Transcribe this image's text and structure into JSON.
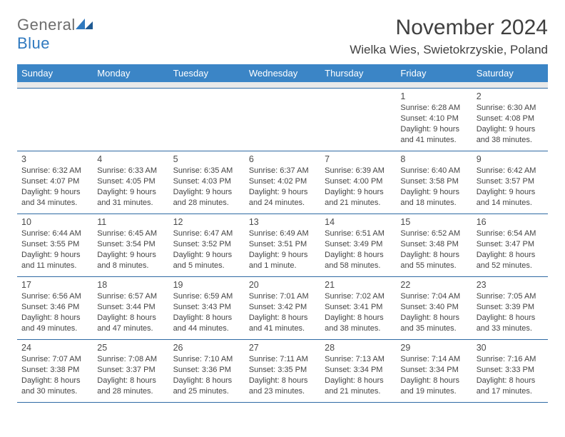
{
  "brand": {
    "part1": "General",
    "part2": "Blue"
  },
  "title": "November 2024",
  "location": "Wielka Wies, Swietokrzyskie, Poland",
  "colors": {
    "header_bg": "#3b85c6",
    "header_text": "#ffffff",
    "cell_border": "#2f6aa4",
    "spacer_bg": "#e9e9e9",
    "brand_gray": "#6d6d6d",
    "brand_blue": "#2f79bf"
  },
  "weekdays": [
    "Sunday",
    "Monday",
    "Tuesday",
    "Wednesday",
    "Thursday",
    "Friday",
    "Saturday"
  ],
  "grid": [
    [
      null,
      null,
      null,
      null,
      null,
      {
        "n": "1",
        "sr": "6:28 AM",
        "ss": "4:10 PM",
        "dh": "9",
        "dm": "41"
      },
      {
        "n": "2",
        "sr": "6:30 AM",
        "ss": "4:08 PM",
        "dh": "9",
        "dm": "38"
      }
    ],
    [
      {
        "n": "3",
        "sr": "6:32 AM",
        "ss": "4:07 PM",
        "dh": "9",
        "dm": "34"
      },
      {
        "n": "4",
        "sr": "6:33 AM",
        "ss": "4:05 PM",
        "dh": "9",
        "dm": "31"
      },
      {
        "n": "5",
        "sr": "6:35 AM",
        "ss": "4:03 PM",
        "dh": "9",
        "dm": "28"
      },
      {
        "n": "6",
        "sr": "6:37 AM",
        "ss": "4:02 PM",
        "dh": "9",
        "dm": "24"
      },
      {
        "n": "7",
        "sr": "6:39 AM",
        "ss": "4:00 PM",
        "dh": "9",
        "dm": "21"
      },
      {
        "n": "8",
        "sr": "6:40 AM",
        "ss": "3:58 PM",
        "dh": "9",
        "dm": "18"
      },
      {
        "n": "9",
        "sr": "6:42 AM",
        "ss": "3:57 PM",
        "dh": "9",
        "dm": "14"
      }
    ],
    [
      {
        "n": "10",
        "sr": "6:44 AM",
        "ss": "3:55 PM",
        "dh": "9",
        "dm": "11"
      },
      {
        "n": "11",
        "sr": "6:45 AM",
        "ss": "3:54 PM",
        "dh": "9",
        "dm": "8"
      },
      {
        "n": "12",
        "sr": "6:47 AM",
        "ss": "3:52 PM",
        "dh": "9",
        "dm": "5"
      },
      {
        "n": "13",
        "sr": "6:49 AM",
        "ss": "3:51 PM",
        "dh": "9",
        "dm": "1",
        "singular": true
      },
      {
        "n": "14",
        "sr": "6:51 AM",
        "ss": "3:49 PM",
        "dh": "8",
        "dm": "58"
      },
      {
        "n": "15",
        "sr": "6:52 AM",
        "ss": "3:48 PM",
        "dh": "8",
        "dm": "55"
      },
      {
        "n": "16",
        "sr": "6:54 AM",
        "ss": "3:47 PM",
        "dh": "8",
        "dm": "52"
      }
    ],
    [
      {
        "n": "17",
        "sr": "6:56 AM",
        "ss": "3:46 PM",
        "dh": "8",
        "dm": "49"
      },
      {
        "n": "18",
        "sr": "6:57 AM",
        "ss": "3:44 PM",
        "dh": "8",
        "dm": "47"
      },
      {
        "n": "19",
        "sr": "6:59 AM",
        "ss": "3:43 PM",
        "dh": "8",
        "dm": "44"
      },
      {
        "n": "20",
        "sr": "7:01 AM",
        "ss": "3:42 PM",
        "dh": "8",
        "dm": "41"
      },
      {
        "n": "21",
        "sr": "7:02 AM",
        "ss": "3:41 PM",
        "dh": "8",
        "dm": "38"
      },
      {
        "n": "22",
        "sr": "7:04 AM",
        "ss": "3:40 PM",
        "dh": "8",
        "dm": "35"
      },
      {
        "n": "23",
        "sr": "7:05 AM",
        "ss": "3:39 PM",
        "dh": "8",
        "dm": "33"
      }
    ],
    [
      {
        "n": "24",
        "sr": "7:07 AM",
        "ss": "3:38 PM",
        "dh": "8",
        "dm": "30"
      },
      {
        "n": "25",
        "sr": "7:08 AM",
        "ss": "3:37 PM",
        "dh": "8",
        "dm": "28"
      },
      {
        "n": "26",
        "sr": "7:10 AM",
        "ss": "3:36 PM",
        "dh": "8",
        "dm": "25"
      },
      {
        "n": "27",
        "sr": "7:11 AM",
        "ss": "3:35 PM",
        "dh": "8",
        "dm": "23"
      },
      {
        "n": "28",
        "sr": "7:13 AM",
        "ss": "3:34 PM",
        "dh": "8",
        "dm": "21"
      },
      {
        "n": "29",
        "sr": "7:14 AM",
        "ss": "3:34 PM",
        "dh": "8",
        "dm": "19"
      },
      {
        "n": "30",
        "sr": "7:16 AM",
        "ss": "3:33 PM",
        "dh": "8",
        "dm": "17"
      }
    ]
  ],
  "labels": {
    "sunrise": "Sunrise:",
    "sunset": "Sunset:",
    "daylight": "Daylight:",
    "hours": "hours",
    "and": "and",
    "minute": "minute.",
    "minutes": "minutes."
  }
}
